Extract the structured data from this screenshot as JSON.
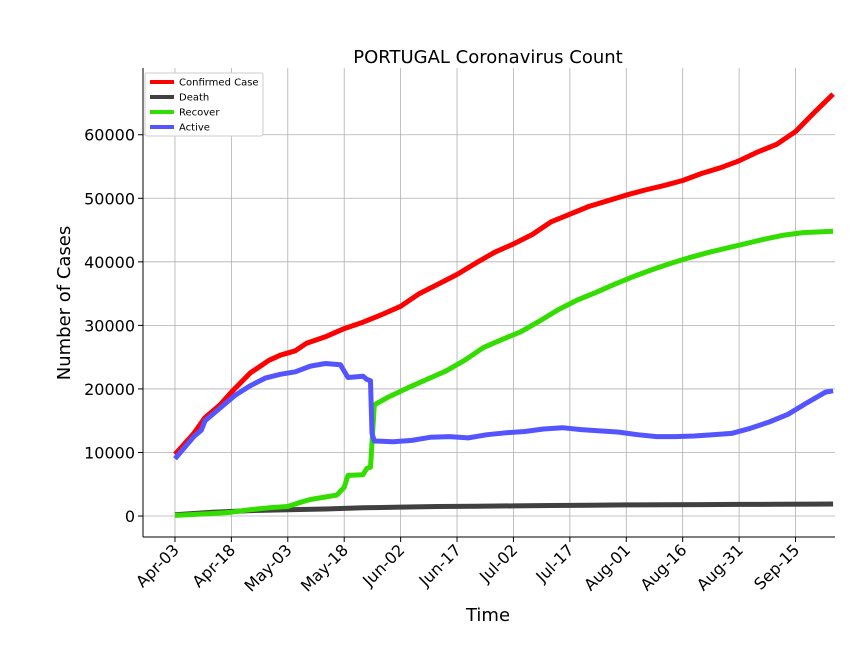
{
  "chart_data": {
    "type": "line",
    "title": "PORTUGAL Coronavirus Count",
    "xlabel": "Time",
    "ylabel": "Number of Cases",
    "x_tick_labels": [
      "Apr-03",
      "Apr-18",
      "May-03",
      "May-18",
      "Jun-02",
      "Jun-17",
      "Jul-02",
      "Jul-17",
      "Aug-01",
      "Aug-16",
      "Aug-31",
      "Sep-15"
    ],
    "y_tick_labels": [
      "0",
      "10000",
      "20000",
      "30000",
      "40000",
      "50000",
      "60000"
    ],
    "ylim": [
      -3300,
      70500
    ],
    "xlim_days": [
      -8.5,
      175.5
    ],
    "grid": true,
    "legend_position": "top-left",
    "series": [
      {
        "name": "Confirmed Case",
        "color": "#ff0000",
        "points": [
          [
            0,
            9700
          ],
          [
            5,
            13000
          ],
          [
            8,
            15500
          ],
          [
            12,
            17500
          ],
          [
            15,
            19500
          ],
          [
            20,
            22500
          ],
          [
            25,
            24500
          ],
          [
            28,
            25300
          ],
          [
            32,
            26000
          ],
          [
            35,
            27200
          ],
          [
            40,
            28200
          ],
          [
            45,
            29500
          ],
          [
            50,
            30500
          ],
          [
            55,
            31700
          ],
          [
            60,
            33000
          ],
          [
            65,
            35000
          ],
          [
            70,
            36500
          ],
          [
            75,
            38000
          ],
          [
            80,
            39800
          ],
          [
            85,
            41500
          ],
          [
            90,
            42800
          ],
          [
            95,
            44300
          ],
          [
            100,
            46300
          ],
          [
            105,
            47500
          ],
          [
            110,
            48700
          ],
          [
            115,
            49600
          ],
          [
            120,
            50500
          ],
          [
            125,
            51300
          ],
          [
            130,
            52000
          ],
          [
            135,
            52800
          ],
          [
            140,
            53900
          ],
          [
            145,
            54800
          ],
          [
            150,
            55900
          ],
          [
            155,
            57300
          ],
          [
            160,
            58500
          ],
          [
            165,
            60500
          ],
          [
            170,
            63500
          ],
          [
            175,
            66400
          ]
        ]
      },
      {
        "name": "Death",
        "color": "#404040",
        "points": [
          [
            0,
            200
          ],
          [
            10,
            600
          ],
          [
            20,
            850
          ],
          [
            30,
            1000
          ],
          [
            40,
            1100
          ],
          [
            50,
            1300
          ],
          [
            60,
            1400
          ],
          [
            70,
            1500
          ],
          [
            80,
            1550
          ],
          [
            90,
            1600
          ],
          [
            100,
            1650
          ],
          [
            110,
            1700
          ],
          [
            120,
            1750
          ],
          [
            130,
            1780
          ],
          [
            140,
            1800
          ],
          [
            150,
            1830
          ],
          [
            160,
            1850
          ],
          [
            170,
            1870
          ],
          [
            175,
            1900
          ]
        ]
      },
      {
        "name": "Recover",
        "color": "#33dd00",
        "points": [
          [
            0,
            100
          ],
          [
            10,
            400
          ],
          [
            15,
            600
          ],
          [
            20,
            1000
          ],
          [
            25,
            1300
          ],
          [
            30,
            1500
          ],
          [
            33,
            2100
          ],
          [
            36,
            2600
          ],
          [
            40,
            3000
          ],
          [
            43,
            3300
          ],
          [
            45,
            4500
          ],
          [
            46,
            6400
          ],
          [
            50,
            6500
          ],
          [
            51,
            7500
          ],
          [
            52,
            7700
          ],
          [
            52.4,
            11500
          ],
          [
            53,
            17500
          ],
          [
            57,
            18800
          ],
          [
            62,
            20200
          ],
          [
            67,
            21500
          ],
          [
            72,
            22800
          ],
          [
            77,
            24500
          ],
          [
            82,
            26500
          ],
          [
            87,
            27800
          ],
          [
            92,
            29000
          ],
          [
            97,
            30700
          ],
          [
            102,
            32500
          ],
          [
            107,
            34000
          ],
          [
            112,
            35200
          ],
          [
            117,
            36500
          ],
          [
            122,
            37700
          ],
          [
            127,
            38800
          ],
          [
            132,
            39800
          ],
          [
            137,
            40700
          ],
          [
            142,
            41500
          ],
          [
            147,
            42200
          ],
          [
            152,
            42900
          ],
          [
            157,
            43600
          ],
          [
            162,
            44200
          ],
          [
            167,
            44600
          ],
          [
            175,
            44800
          ]
        ]
      },
      {
        "name": "Active",
        "color": "#5555ff",
        "points": [
          [
            0,
            9000
          ],
          [
            5,
            12500
          ],
          [
            7,
            13500
          ],
          [
            8,
            15000
          ],
          [
            12,
            17000
          ],
          [
            16,
            19000
          ],
          [
            20,
            20500
          ],
          [
            24,
            21700
          ],
          [
            28,
            22300
          ],
          [
            32,
            22700
          ],
          [
            36,
            23600
          ],
          [
            40,
            24000
          ],
          [
            44,
            23800
          ],
          [
            46,
            21800
          ],
          [
            50,
            22000
          ],
          [
            51,
            21500
          ],
          [
            52,
            21300
          ],
          [
            52.4,
            13000
          ],
          [
            53,
            11800
          ],
          [
            58,
            11700
          ],
          [
            63,
            11900
          ],
          [
            68,
            12400
          ],
          [
            73,
            12500
          ],
          [
            78,
            12300
          ],
          [
            83,
            12800
          ],
          [
            88,
            13100
          ],
          [
            93,
            13300
          ],
          [
            98,
            13700
          ],
          [
            103,
            13900
          ],
          [
            108,
            13600
          ],
          [
            113,
            13400
          ],
          [
            118,
            13200
          ],
          [
            123,
            12800
          ],
          [
            128,
            12500
          ],
          [
            133,
            12500
          ],
          [
            138,
            12600
          ],
          [
            143,
            12800
          ],
          [
            148,
            13000
          ],
          [
            153,
            13800
          ],
          [
            158,
            14800
          ],
          [
            163,
            16000
          ],
          [
            168,
            17800
          ],
          [
            173,
            19500
          ],
          [
            175,
            19700
          ]
        ]
      }
    ]
  }
}
